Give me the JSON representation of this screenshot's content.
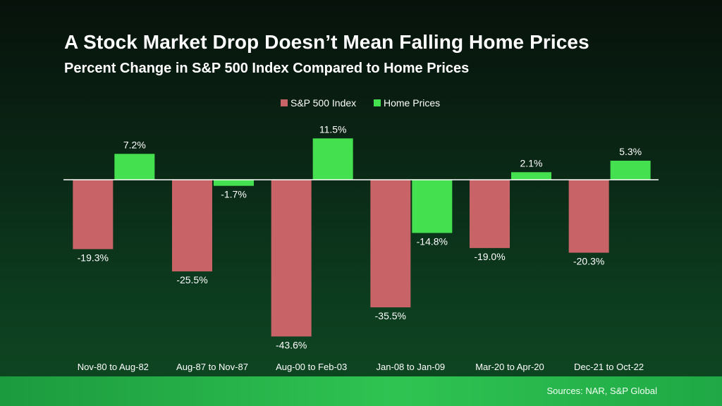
{
  "title": "A Stock Market Drop Doesn’t Mean Falling Home Prices",
  "subtitle": "Percent Change in S&P 500 Index Compared to Home Prices",
  "source": "Sources: NAR, S&P Global",
  "colors": {
    "sp500": "#c86467",
    "home": "#45e04f",
    "text": "#ffffff",
    "zero_line": "#ffffff"
  },
  "chart_data": {
    "type": "bar",
    "categories": [
      "Nov-80 to Aug-82",
      "Aug-87 to Nov-87",
      "Aug-00 to Feb-03",
      "Jan-08 to Jan-09",
      "Mar-20 to Apr-20",
      "Dec-21 to Oct-22"
    ],
    "series": [
      {
        "name": "S&P 500 Index",
        "color": "#c86467",
        "values": [
          -19.3,
          -25.5,
          -43.6,
          -35.5,
          -19.0,
          -20.3
        ],
        "labels": [
          "-19.3%",
          "-25.5%",
          "-43.6%",
          "-35.5%",
          "-19.0%",
          "-20.3%"
        ]
      },
      {
        "name": "Home Prices",
        "color": "#45e04f",
        "values": [
          7.2,
          -1.7,
          11.5,
          -14.8,
          2.1,
          5.3
        ],
        "labels": [
          "7.2%",
          "-1.7%",
          "11.5%",
          "-14.8%",
          "2.1%",
          "5.3%"
        ]
      }
    ],
    "legend_position": "top",
    "grid": false,
    "ylim": [
      -45,
      15
    ],
    "xlabel": "",
    "ylabel": ""
  }
}
